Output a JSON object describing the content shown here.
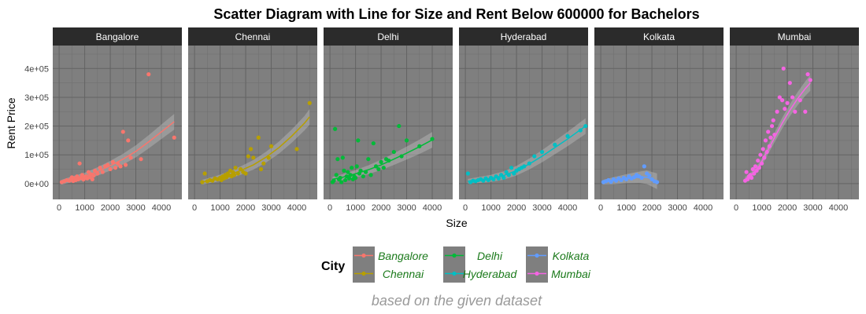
{
  "chart_data": {
    "type": "scatter",
    "title": "Scatter Diagram with Line for Size and Rent Below 600000 for Bachelors",
    "xlabel": "Size",
    "ylabel": "Rent Price",
    "caption": "based on the given dataset",
    "xlim": [
      -250,
      4800
    ],
    "ylim": [
      -55000,
      480000
    ],
    "x_ticks": [
      0,
      1000,
      2000,
      3000,
      4000
    ],
    "x_tick_labels": [
      "0",
      "1000",
      "2000",
      "3000",
      "4000"
    ],
    "y_ticks": [
      0,
      100000,
      200000,
      300000,
      400000
    ],
    "y_tick_labels": [
      "0e+00",
      "1e+05",
      "2e+05",
      "3e+05",
      "4e+05"
    ],
    "grid": true,
    "legend": {
      "title": "City",
      "position": "bottom"
    },
    "facets": [
      {
        "name": "Bangalore",
        "color": "#F8766D",
        "points": [
          [
            100,
            5000
          ],
          [
            200,
            8000
          ],
          [
            300,
            12000
          ],
          [
            400,
            10000
          ],
          [
            450,
            15000
          ],
          [
            500,
            22000
          ],
          [
            550,
            9000
          ],
          [
            600,
            18000
          ],
          [
            650,
            12000
          ],
          [
            700,
            25000
          ],
          [
            750,
            15000
          ],
          [
            800,
            70000
          ],
          [
            850,
            20000
          ],
          [
            900,
            30000
          ],
          [
            950,
            14000
          ],
          [
            1000,
            20000
          ],
          [
            1050,
            25000
          ],
          [
            1100,
            18000
          ],
          [
            1150,
            40000
          ],
          [
            1200,
            22000
          ],
          [
            1250,
            32000
          ],
          [
            1300,
            15000
          ],
          [
            1350,
            28000
          ],
          [
            1400,
            45000
          ],
          [
            1500,
            35000
          ],
          [
            1600,
            55000
          ],
          [
            1700,
            40000
          ],
          [
            1800,
            60000
          ],
          [
            1900,
            65000
          ],
          [
            2000,
            50000
          ],
          [
            2100,
            75000
          ],
          [
            2200,
            55000
          ],
          [
            2300,
            70000
          ],
          [
            2400,
            60000
          ],
          [
            2500,
            180000
          ],
          [
            2600,
            65000
          ],
          [
            2700,
            150000
          ],
          [
            2800,
            90000
          ],
          [
            3200,
            85000
          ],
          [
            3500,
            380000
          ],
          [
            4500,
            160000
          ]
        ],
        "fit": [
          [
            100,
            5000
          ],
          [
            500,
            15000
          ],
          [
            1000,
            25000
          ],
          [
            1500,
            42000
          ],
          [
            2000,
            62000
          ],
          [
            2500,
            85000
          ],
          [
            3000,
            112000
          ],
          [
            3500,
            145000
          ],
          [
            4000,
            180000
          ],
          [
            4500,
            215000
          ]
        ]
      },
      {
        "name": "Chennai",
        "color": "#B79F00",
        "points": [
          [
            300,
            5000
          ],
          [
            400,
            35000
          ],
          [
            500,
            8000
          ],
          [
            600,
            12000
          ],
          [
            700,
            10000
          ],
          [
            800,
            18000
          ],
          [
            900,
            15000
          ],
          [
            1000,
            20000
          ],
          [
            1050,
            12000
          ],
          [
            1100,
            25000
          ],
          [
            1150,
            18000
          ],
          [
            1200,
            30000
          ],
          [
            1250,
            22000
          ],
          [
            1300,
            35000
          ],
          [
            1350,
            28000
          ],
          [
            1400,
            45000
          ],
          [
            1450,
            25000
          ],
          [
            1500,
            40000
          ],
          [
            1550,
            30000
          ],
          [
            1600,
            55000
          ],
          [
            1700,
            35000
          ],
          [
            1800,
            50000
          ],
          [
            1900,
            40000
          ],
          [
            2000,
            35000
          ],
          [
            2100,
            95000
          ],
          [
            2200,
            120000
          ],
          [
            2300,
            90000
          ],
          [
            2500,
            160000
          ],
          [
            2600,
            50000
          ],
          [
            2700,
            70000
          ],
          [
            2900,
            90000
          ],
          [
            3000,
            130000
          ],
          [
            4000,
            120000
          ],
          [
            4500,
            280000
          ]
        ],
        "fit": [
          [
            300,
            5000
          ],
          [
            800,
            15000
          ],
          [
            1300,
            28000
          ],
          [
            1800,
            45000
          ],
          [
            2300,
            65000
          ],
          [
            2800,
            92000
          ],
          [
            3300,
            125000
          ],
          [
            3800,
            165000
          ],
          [
            4300,
            210000
          ],
          [
            4500,
            232000
          ]
        ]
      },
      {
        "name": "Delhi",
        "color": "#00BA38",
        "points": [
          [
            100,
            5000
          ],
          [
            150,
            10000
          ],
          [
            200,
            190000
          ],
          [
            250,
            30000
          ],
          [
            300,
            85000
          ],
          [
            350,
            15000
          ],
          [
            400,
            20000
          ],
          [
            450,
            5000
          ],
          [
            500,
            90000
          ],
          [
            550,
            45000
          ],
          [
            600,
            12000
          ],
          [
            650,
            25000
          ],
          [
            700,
            40000
          ],
          [
            750,
            18000
          ],
          [
            800,
            30000
          ],
          [
            850,
            55000
          ],
          [
            900,
            15000
          ],
          [
            950,
            25000
          ],
          [
            1000,
            20000
          ],
          [
            1050,
            60000
          ],
          [
            1100,
            150000
          ],
          [
            1150,
            35000
          ],
          [
            1200,
            45000
          ],
          [
            1300,
            25000
          ],
          [
            1400,
            40000
          ],
          [
            1500,
            85000
          ],
          [
            1600,
            30000
          ],
          [
            1700,
            140000
          ],
          [
            1800,
            60000
          ],
          [
            1900,
            50000
          ],
          [
            2000,
            75000
          ],
          [
            2100,
            55000
          ],
          [
            2200,
            85000
          ],
          [
            2300,
            80000
          ],
          [
            2500,
            110000
          ],
          [
            2700,
            200000
          ],
          [
            2800,
            95000
          ],
          [
            3000,
            150000
          ],
          [
            3500,
            130000
          ],
          [
            4000,
            155000
          ]
        ],
        "fit": [
          [
            100,
            15000
          ],
          [
            500,
            22000
          ],
          [
            1000,
            34000
          ],
          [
            1500,
            48000
          ],
          [
            2000,
            65000
          ],
          [
            2500,
            85000
          ],
          [
            3000,
            106000
          ],
          [
            3500,
            128000
          ],
          [
            4000,
            152000
          ]
        ]
      },
      {
        "name": "Hyderabad",
        "color": "#00BFC4",
        "points": [
          [
            100,
            35000
          ],
          [
            200,
            5000
          ],
          [
            300,
            10000
          ],
          [
            400,
            8000
          ],
          [
            500,
            12000
          ],
          [
            600,
            15000
          ],
          [
            700,
            10000
          ],
          [
            800,
            18000
          ],
          [
            900,
            12000
          ],
          [
            1000,
            20000
          ],
          [
            1100,
            15000
          ],
          [
            1200,
            25000
          ],
          [
            1300,
            18000
          ],
          [
            1400,
            30000
          ],
          [
            1500,
            20000
          ],
          [
            1600,
            40000
          ],
          [
            1700,
            30000
          ],
          [
            1800,
            55000
          ],
          [
            1900,
            35000
          ],
          [
            2000,
            45000
          ],
          [
            2100,
            50000
          ],
          [
            2200,
            55000
          ],
          [
            2300,
            60000
          ],
          [
            2500,
            70000
          ],
          [
            2700,
            95000
          ],
          [
            3000,
            110000
          ],
          [
            3500,
            135000
          ],
          [
            4000,
            165000
          ],
          [
            4500,
            185000
          ],
          [
            4700,
            200000
          ]
        ],
        "fit": [
          [
            100,
            8000
          ],
          [
            500,
            12000
          ],
          [
            1000,
            18000
          ],
          [
            1500,
            28000
          ],
          [
            2000,
            45000
          ],
          [
            2500,
            68000
          ],
          [
            3000,
            95000
          ],
          [
            3500,
            125000
          ],
          [
            4000,
            155000
          ],
          [
            4700,
            200000
          ]
        ]
      },
      {
        "name": "Kolkata",
        "color": "#619CFF",
        "points": [
          [
            100,
            5000
          ],
          [
            200,
            8000
          ],
          [
            300,
            12000
          ],
          [
            400,
            6000
          ],
          [
            500,
            15000
          ],
          [
            600,
            10000
          ],
          [
            700,
            18000
          ],
          [
            800,
            12000
          ],
          [
            900,
            20000
          ],
          [
            1000,
            15000
          ],
          [
            1100,
            25000
          ],
          [
            1200,
            18000
          ],
          [
            1300,
            22000
          ],
          [
            1400,
            30000
          ],
          [
            1500,
            25000
          ],
          [
            1600,
            20000
          ],
          [
            1700,
            60000
          ],
          [
            1800,
            35000
          ],
          [
            1900,
            28000
          ],
          [
            2000,
            15000
          ],
          [
            2100,
            8000
          ],
          [
            2200,
            5000
          ]
        ],
        "fit": [
          [
            100,
            5000
          ],
          [
            500,
            10000
          ],
          [
            1000,
            17000
          ],
          [
            1500,
            22000
          ],
          [
            1800,
            22000
          ],
          [
            2200,
            8000
          ]
        ]
      },
      {
        "name": "Mumbai",
        "color": "#F564E3",
        "points": [
          [
            350,
            10000
          ],
          [
            400,
            40000
          ],
          [
            450,
            15000
          ],
          [
            500,
            25000
          ],
          [
            550,
            30000
          ],
          [
            600,
            20000
          ],
          [
            650,
            50000
          ],
          [
            700,
            35000
          ],
          [
            750,
            60000
          ],
          [
            800,
            45000
          ],
          [
            850,
            80000
          ],
          [
            900,
            55000
          ],
          [
            950,
            100000
          ],
          [
            1000,
            70000
          ],
          [
            1050,
            120000
          ],
          [
            1100,
            90000
          ],
          [
            1150,
            150000
          ],
          [
            1200,
            110000
          ],
          [
            1250,
            180000
          ],
          [
            1300,
            130000
          ],
          [
            1350,
            160000
          ],
          [
            1400,
            200000
          ],
          [
            1450,
            220000
          ],
          [
            1500,
            170000
          ],
          [
            1600,
            250000
          ],
          [
            1700,
            300000
          ],
          [
            1800,
            290000
          ],
          [
            1850,
            400000
          ],
          [
            1900,
            260000
          ],
          [
            2000,
            280000
          ],
          [
            2100,
            350000
          ],
          [
            2200,
            300000
          ],
          [
            2300,
            250000
          ],
          [
            2500,
            290000
          ],
          [
            2700,
            250000
          ],
          [
            2800,
            380000
          ],
          [
            2900,
            360000
          ]
        ],
        "fit": [
          [
            350,
            15000
          ],
          [
            600,
            30000
          ],
          [
            900,
            60000
          ],
          [
            1200,
            110000
          ],
          [
            1500,
            160000
          ],
          [
            1800,
            210000
          ],
          [
            2100,
            255000
          ],
          [
            2400,
            295000
          ],
          [
            2700,
            330000
          ],
          [
            2900,
            350000
          ]
        ]
      }
    ]
  }
}
